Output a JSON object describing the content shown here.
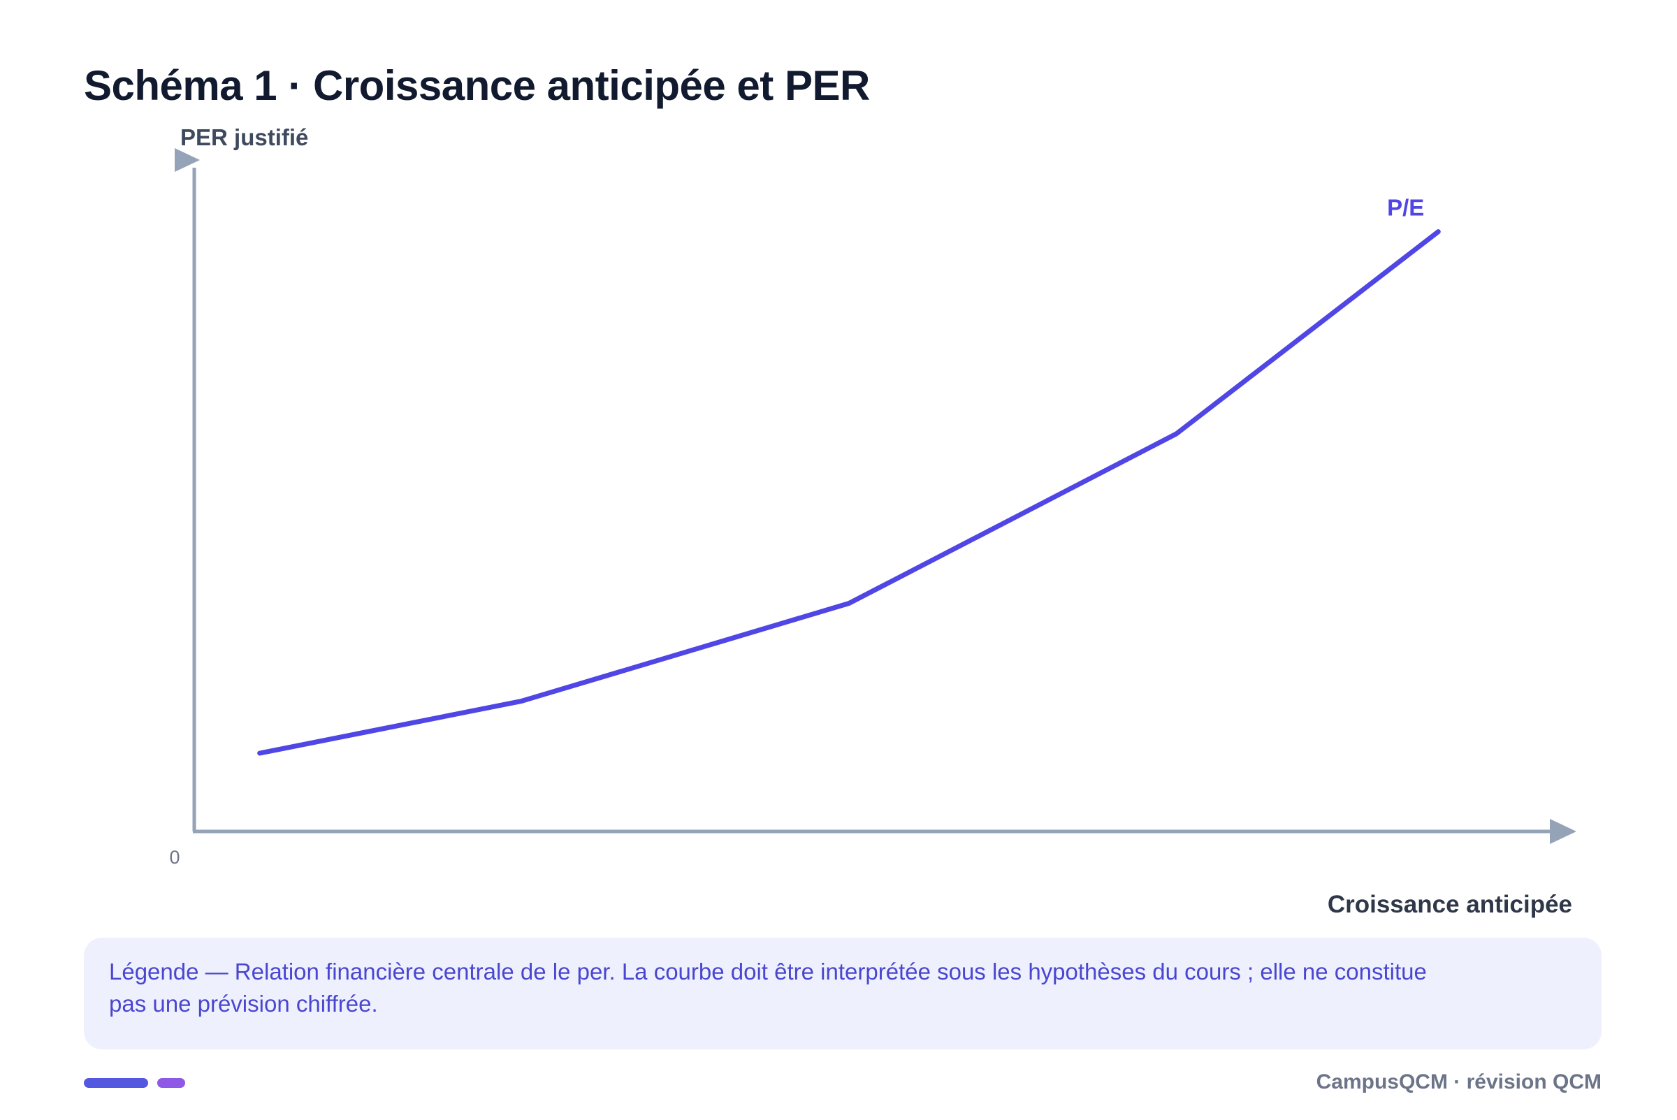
{
  "page": {
    "title": "Schéma 1 · Croissance anticipée et PER",
    "legend": "Légende — Relation financière centrale de le per. La courbe doit être interprétée sous les hypothèses du cours ; elle ne constitue pas une prévision chiffrée.",
    "footer": "CampusQCM · révision QCM"
  },
  "colors": {
    "axis": "#94a3b8",
    "series": "#4f46e5",
    "legend_bg": "#eef1fd",
    "legend_text": "#4a46d0"
  },
  "chart_data": {
    "type": "line",
    "title": "Schéma 1 · Croissance anticipée et PER",
    "xlabel": "Croissance anticipée",
    "ylabel": "PER justifié",
    "origin_label": "0",
    "xlim": [
      0,
      1
    ],
    "ylim": [
      0,
      1
    ],
    "grid": false,
    "series": [
      {
        "name": "P/E",
        "x": [
          0.05,
          0.25,
          0.5,
          0.75,
          0.95
        ],
        "values": [
          0.12,
          0.2,
          0.35,
          0.61,
          0.92
        ]
      }
    ]
  }
}
